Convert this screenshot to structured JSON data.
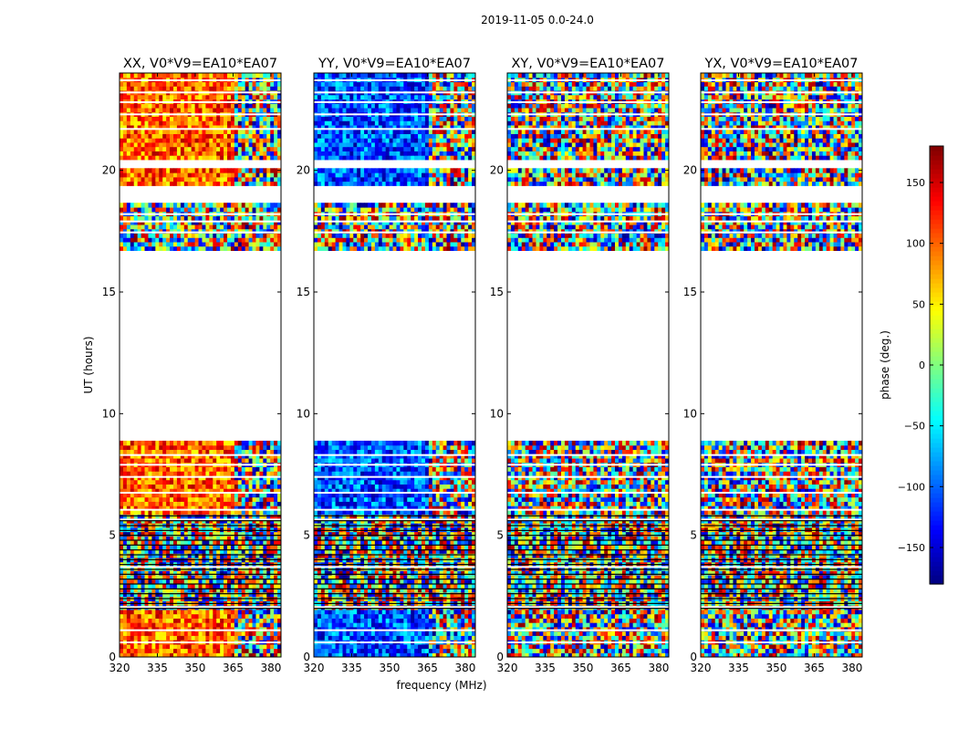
{
  "chart_data": {
    "type": "heatmap",
    "suptitle": "2019-11-05 0.0-24.0",
    "xlabel": "frequency (MHz)",
    "ylabel": "UT (hours)",
    "xlim": [
      320,
      384
    ],
    "ylim": [
      0,
      24
    ],
    "xticks": [
      320,
      335,
      350,
      365,
      380
    ],
    "yticks": [
      0,
      5,
      10,
      15,
      20
    ],
    "panels": [
      {
        "title": "XX, V0*V9=EA10*EA07",
        "mode": "warm"
      },
      {
        "title": "YY, V0*V9=EA10*EA07",
        "mode": "cool"
      },
      {
        "title": "XY, V0*V9=EA10*EA07",
        "mode": "noise"
      },
      {
        "title": "YX, V0*V9=EA10*EA07",
        "mode": "noise"
      }
    ],
    "colorbar": {
      "label": "phase (deg.)",
      "range": [
        -180,
        180
      ],
      "ticks": [
        150,
        100,
        50,
        0,
        -50,
        -100,
        -150
      ],
      "tick_labels": [
        "150",
        "100",
        "50",
        "0",
        "−50",
        "−100",
        "−150"
      ],
      "colormap": "jet"
    },
    "data_time_ranges_hours": [
      {
        "start": 0.0,
        "end": 8.9
      },
      {
        "start": 16.8,
        "end": 18.6
      },
      {
        "start": 19.3,
        "end": 20.1
      },
      {
        "start": 20.5,
        "end": 24.0
      }
    ]
  }
}
